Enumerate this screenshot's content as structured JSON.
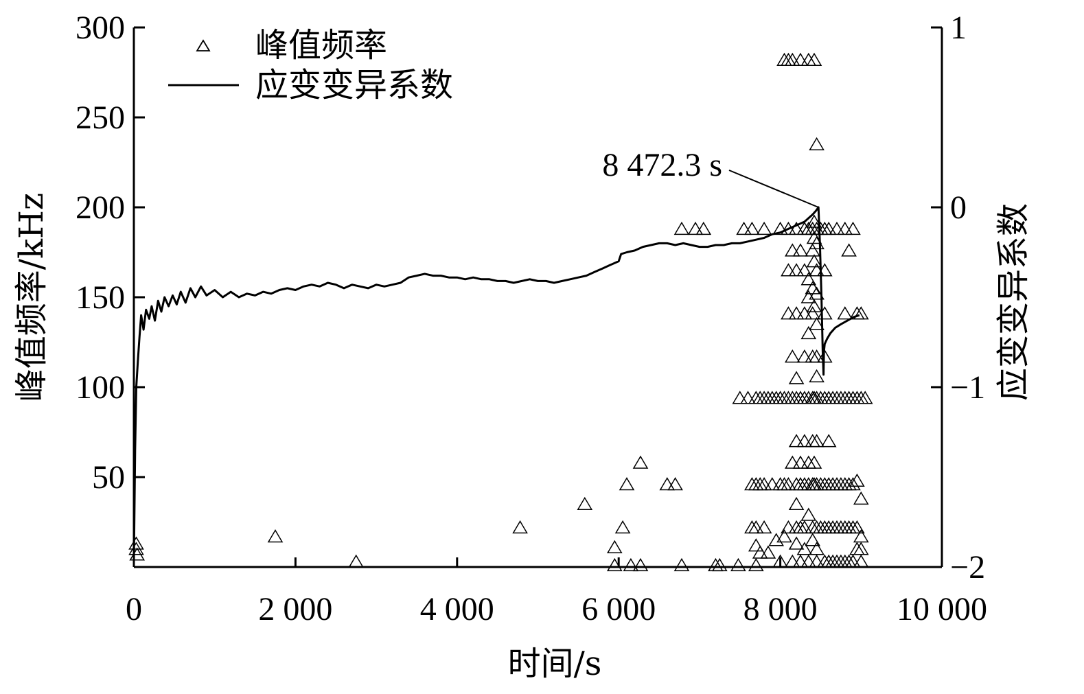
{
  "chart_data": {
    "type": "scatter",
    "title": "",
    "xlabel": "时间/s",
    "ylabel_left": "峰值频率/kHz",
    "ylabel_right": "应变变异系数",
    "xlim": [
      0,
      10000
    ],
    "ylim_left": [
      0,
      300
    ],
    "ylim_right": [
      -2,
      1
    ],
    "xticks": [
      0,
      2000,
      4000,
      6000,
      8000,
      10000
    ],
    "xtick_labels": [
      "0",
      "2 000",
      "4 000",
      "6 000",
      "8 000",
      "10 000"
    ],
    "yticks_left": [
      50,
      100,
      150,
      200,
      250,
      300
    ],
    "ytick_labels_left": [
      "50",
      "100",
      "150",
      "200",
      "250",
      "300"
    ],
    "yticks_right": [
      -2,
      -1,
      0,
      1
    ],
    "ytick_labels_right": [
      "−2",
      "−1",
      "0",
      "1"
    ],
    "grid": false,
    "legend_position": "top-left",
    "legend": [
      {
        "label": "峰值频率",
        "marker": "triangle"
      },
      {
        "label": "应变变异系数",
        "marker": "line"
      }
    ],
    "annotation": {
      "text": "8 472.3 s",
      "x": 8472.3,
      "y_right": 0
    },
    "series": [
      {
        "name": "峰值频率",
        "axis": "left",
        "kind": "scatter",
        "marker": "triangle",
        "points": [
          [
            30,
            13
          ],
          [
            30,
            10
          ],
          [
            40,
            7
          ],
          [
            1750,
            17
          ],
          [
            2750,
            3
          ],
          [
            4780,
            22
          ],
          [
            5580,
            35
          ],
          [
            5950,
            11
          ],
          [
            5950,
            1
          ],
          [
            6050,
            22
          ],
          [
            6100,
            46
          ],
          [
            6150,
            1
          ],
          [
            6270,
            1
          ],
          [
            6270,
            58
          ],
          [
            6600,
            46
          ],
          [
            6700,
            46
          ],
          [
            6780,
            188
          ],
          [
            6780,
            1
          ],
          [
            6950,
            188
          ],
          [
            7050,
            188
          ],
          [
            7200,
            1
          ],
          [
            7250,
            1
          ],
          [
            7480,
            1
          ],
          [
            7500,
            94
          ],
          [
            7550,
            188
          ],
          [
            7650,
            188
          ],
          [
            7700,
            1
          ],
          [
            7700,
            94
          ],
          [
            7700,
            46
          ],
          [
            7700,
            22
          ],
          [
            7700,
            12
          ],
          [
            7800,
            188
          ],
          [
            7800,
            94
          ],
          [
            7800,
            46
          ],
          [
            7800,
            22
          ],
          [
            7850,
            8
          ],
          [
            7900,
            94
          ],
          [
            7900,
            46
          ],
          [
            7950,
            15
          ],
          [
            8000,
            188
          ],
          [
            8000,
            94
          ],
          [
            8000,
            46
          ],
          [
            8000,
            3
          ],
          [
            8050,
            282
          ],
          [
            8100,
            282
          ],
          [
            8150,
            282
          ],
          [
            8100,
            188
          ],
          [
            8100,
            165
          ],
          [
            8100,
            141
          ],
          [
            8100,
            94
          ],
          [
            8100,
            46
          ],
          [
            8100,
            22
          ],
          [
            8150,
            176
          ],
          [
            8150,
            117
          ],
          [
            8150,
            58
          ],
          [
            8150,
            3
          ],
          [
            8200,
            188
          ],
          [
            8200,
            165
          ],
          [
            8200,
            141
          ],
          [
            8200,
            105
          ],
          [
            8200,
            94
          ],
          [
            8200,
            70
          ],
          [
            8200,
            46
          ],
          [
            8200,
            35
          ],
          [
            8200,
            22
          ],
          [
            8200,
            13
          ],
          [
            8250,
            282
          ],
          [
            8250,
            176
          ],
          [
            8250,
            94
          ],
          [
            8250,
            58
          ],
          [
            8250,
            3
          ],
          [
            8300,
            188
          ],
          [
            8300,
            165
          ],
          [
            8300,
            141
          ],
          [
            8300,
            117
          ],
          [
            8300,
            94
          ],
          [
            8300,
            70
          ],
          [
            8300,
            46
          ],
          [
            8300,
            22
          ],
          [
            8300,
            10
          ],
          [
            8350,
            282
          ],
          [
            8350,
            188
          ],
          [
            8350,
            160
          ],
          [
            8350,
            150
          ],
          [
            8350,
            130
          ],
          [
            8350,
            94
          ],
          [
            8350,
            58
          ],
          [
            8350,
            29
          ],
          [
            8350,
            3
          ],
          [
            8400,
            188
          ],
          [
            8400,
            176
          ],
          [
            8400,
            155
          ],
          [
            8400,
            141
          ],
          [
            8400,
            117
          ],
          [
            8400,
            94
          ],
          [
            8400,
            70
          ],
          [
            8400,
            46
          ],
          [
            8400,
            22
          ],
          [
            8400,
            15
          ],
          [
            8420,
            282
          ],
          [
            8420,
            192
          ],
          [
            8420,
            183
          ],
          [
            8420,
            170
          ],
          [
            8420,
            145
          ],
          [
            8420,
            94
          ],
          [
            8420,
            58
          ],
          [
            8420,
            46
          ],
          [
            8450,
            235
          ],
          [
            8450,
            188
          ],
          [
            8450,
            180
          ],
          [
            8450,
            165
          ],
          [
            8450,
            152
          ],
          [
            8450,
            135
          ],
          [
            8450,
            117
          ],
          [
            8450,
            106
          ],
          [
            8450,
            94
          ],
          [
            8450,
            70
          ],
          [
            8450,
            46
          ],
          [
            8450,
            22
          ],
          [
            8450,
            10
          ],
          [
            8450,
            3
          ],
          [
            8500,
            188
          ],
          [
            8500,
            94
          ],
          [
            8500,
            46
          ],
          [
            8500,
            22
          ],
          [
            8550,
            188
          ],
          [
            8550,
            165
          ],
          [
            8550,
            141
          ],
          [
            8550,
            117
          ],
          [
            8550,
            94
          ],
          [
            8550,
            46
          ],
          [
            8550,
            22
          ],
          [
            8550,
            3
          ],
          [
            8600,
            188
          ],
          [
            8600,
            94
          ],
          [
            8600,
            70
          ],
          [
            8600,
            46
          ],
          [
            8600,
            22
          ],
          [
            8600,
            3
          ],
          [
            8650,
            94
          ],
          [
            8650,
            46
          ],
          [
            8650,
            22
          ],
          [
            8700,
            188
          ],
          [
            8700,
            94
          ],
          [
            8700,
            46
          ],
          [
            8700,
            22
          ],
          [
            8700,
            3
          ],
          [
            8750,
            94
          ],
          [
            8750,
            46
          ],
          [
            8750,
            22
          ],
          [
            8800,
            188
          ],
          [
            8800,
            141
          ],
          [
            8800,
            94
          ],
          [
            8800,
            46
          ],
          [
            8800,
            22
          ],
          [
            8800,
            3
          ],
          [
            8850,
            176
          ],
          [
            8850,
            94
          ],
          [
            8850,
            46
          ],
          [
            8850,
            22
          ],
          [
            8900,
            188
          ],
          [
            8900,
            94
          ],
          [
            8900,
            46
          ],
          [
            8900,
            22
          ],
          [
            8900,
            3
          ],
          [
            8950,
            141
          ],
          [
            8950,
            94
          ],
          [
            8950,
            48
          ],
          [
            8950,
            22
          ],
          [
            8950,
            10
          ],
          [
            9000,
            141
          ],
          [
            9000,
            94
          ],
          [
            9000,
            38
          ],
          [
            9000,
            17
          ],
          [
            9000,
            10
          ],
          [
            9000,
            3
          ],
          [
            7600,
            94
          ],
          [
            7650,
            46
          ],
          [
            7650,
            22
          ],
          [
            7750,
            94
          ],
          [
            7750,
            46
          ],
          [
            7750,
            8
          ],
          [
            7850,
            94
          ],
          [
            7950,
            94
          ],
          [
            8050,
            94
          ],
          [
            8050,
            46
          ],
          [
            8050,
            17
          ],
          [
            8150,
            94
          ],
          [
            8250,
            46
          ],
          [
            8250,
            22
          ],
          [
            8350,
            46
          ],
          [
            8650,
            3
          ],
          [
            8750,
            3
          ],
          [
            8850,
            3
          ],
          [
            9050,
            94
          ]
        ]
      },
      {
        "name": "应变变异系数",
        "axis": "right",
        "kind": "line",
        "points": [
          [
            0,
            -1.98
          ],
          [
            15,
            -1.35
          ],
          [
            30,
            -1.0
          ],
          [
            50,
            -0.85
          ],
          [
            70,
            -0.72
          ],
          [
            90,
            -0.6
          ],
          [
            120,
            -0.68
          ],
          [
            150,
            -0.57
          ],
          [
            190,
            -0.62
          ],
          [
            220,
            -0.55
          ],
          [
            260,
            -0.63
          ],
          [
            300,
            -0.52
          ],
          [
            340,
            -0.58
          ],
          [
            380,
            -0.5
          ],
          [
            430,
            -0.55
          ],
          [
            480,
            -0.49
          ],
          [
            530,
            -0.54
          ],
          [
            580,
            -0.47
          ],
          [
            640,
            -0.53
          ],
          [
            700,
            -0.45
          ],
          [
            760,
            -0.5
          ],
          [
            830,
            -0.44
          ],
          [
            900,
            -0.49
          ],
          [
            1000,
            -0.46
          ],
          [
            1100,
            -0.5
          ],
          [
            1200,
            -0.47
          ],
          [
            1300,
            -0.5
          ],
          [
            1400,
            -0.48
          ],
          [
            1500,
            -0.49
          ],
          [
            1600,
            -0.47
          ],
          [
            1700,
            -0.48
          ],
          [
            1800,
            -0.46
          ],
          [
            1900,
            -0.45
          ],
          [
            2000,
            -0.46
          ],
          [
            2100,
            -0.44
          ],
          [
            2200,
            -0.43
          ],
          [
            2300,
            -0.44
          ],
          [
            2400,
            -0.42
          ],
          [
            2500,
            -0.43
          ],
          [
            2600,
            -0.45
          ],
          [
            2700,
            -0.43
          ],
          [
            2800,
            -0.44
          ],
          [
            2900,
            -0.45
          ],
          [
            3000,
            -0.43
          ],
          [
            3100,
            -0.44
          ],
          [
            3200,
            -0.43
          ],
          [
            3300,
            -0.42
          ],
          [
            3400,
            -0.39
          ],
          [
            3500,
            -0.38
          ],
          [
            3600,
            -0.37
          ],
          [
            3700,
            -0.38
          ],
          [
            3800,
            -0.38
          ],
          [
            3900,
            -0.39
          ],
          [
            4000,
            -0.39
          ],
          [
            4100,
            -0.4
          ],
          [
            4200,
            -0.39
          ],
          [
            4300,
            -0.4
          ],
          [
            4400,
            -0.4
          ],
          [
            4500,
            -0.41
          ],
          [
            4600,
            -0.41
          ],
          [
            4700,
            -0.42
          ],
          [
            4800,
            -0.41
          ],
          [
            4900,
            -0.4
          ],
          [
            5000,
            -0.41
          ],
          [
            5100,
            -0.41
          ],
          [
            5200,
            -0.42
          ],
          [
            5300,
            -0.41
          ],
          [
            5400,
            -0.4
          ],
          [
            5500,
            -0.39
          ],
          [
            5600,
            -0.38
          ],
          [
            5700,
            -0.36
          ],
          [
            5800,
            -0.34
          ],
          [
            5900,
            -0.32
          ],
          [
            6000,
            -0.3
          ],
          [
            6030,
            -0.26
          ],
          [
            6100,
            -0.25
          ],
          [
            6200,
            -0.24
          ],
          [
            6300,
            -0.22
          ],
          [
            6400,
            -0.21
          ],
          [
            6500,
            -0.2
          ],
          [
            6600,
            -0.2
          ],
          [
            6700,
            -0.21
          ],
          [
            6800,
            -0.2
          ],
          [
            6900,
            -0.21
          ],
          [
            7000,
            -0.22
          ],
          [
            7100,
            -0.22
          ],
          [
            7200,
            -0.21
          ],
          [
            7300,
            -0.21
          ],
          [
            7400,
            -0.2
          ],
          [
            7500,
            -0.2
          ],
          [
            7600,
            -0.19
          ],
          [
            7700,
            -0.18
          ],
          [
            7800,
            -0.17
          ],
          [
            7900,
            -0.15
          ],
          [
            8000,
            -0.14
          ],
          [
            8100,
            -0.12
          ],
          [
            8200,
            -0.1
          ],
          [
            8300,
            -0.08
          ],
          [
            8350,
            -0.06
          ],
          [
            8400,
            -0.04
          ],
          [
            8440,
            -0.02
          ],
          [
            8472.3,
            0.0
          ],
          [
            8490,
            -0.2
          ],
          [
            8510,
            -0.5
          ],
          [
            8525,
            -0.8
          ],
          [
            8535,
            -0.93
          ],
          [
            8540,
            -0.8
          ],
          [
            8550,
            -0.76
          ],
          [
            8580,
            -0.73
          ],
          [
            8620,
            -0.7
          ],
          [
            8680,
            -0.67
          ],
          [
            8750,
            -0.65
          ],
          [
            8830,
            -0.63
          ],
          [
            8910,
            -0.61
          ],
          [
            8980,
            -0.6
          ]
        ]
      }
    ]
  }
}
